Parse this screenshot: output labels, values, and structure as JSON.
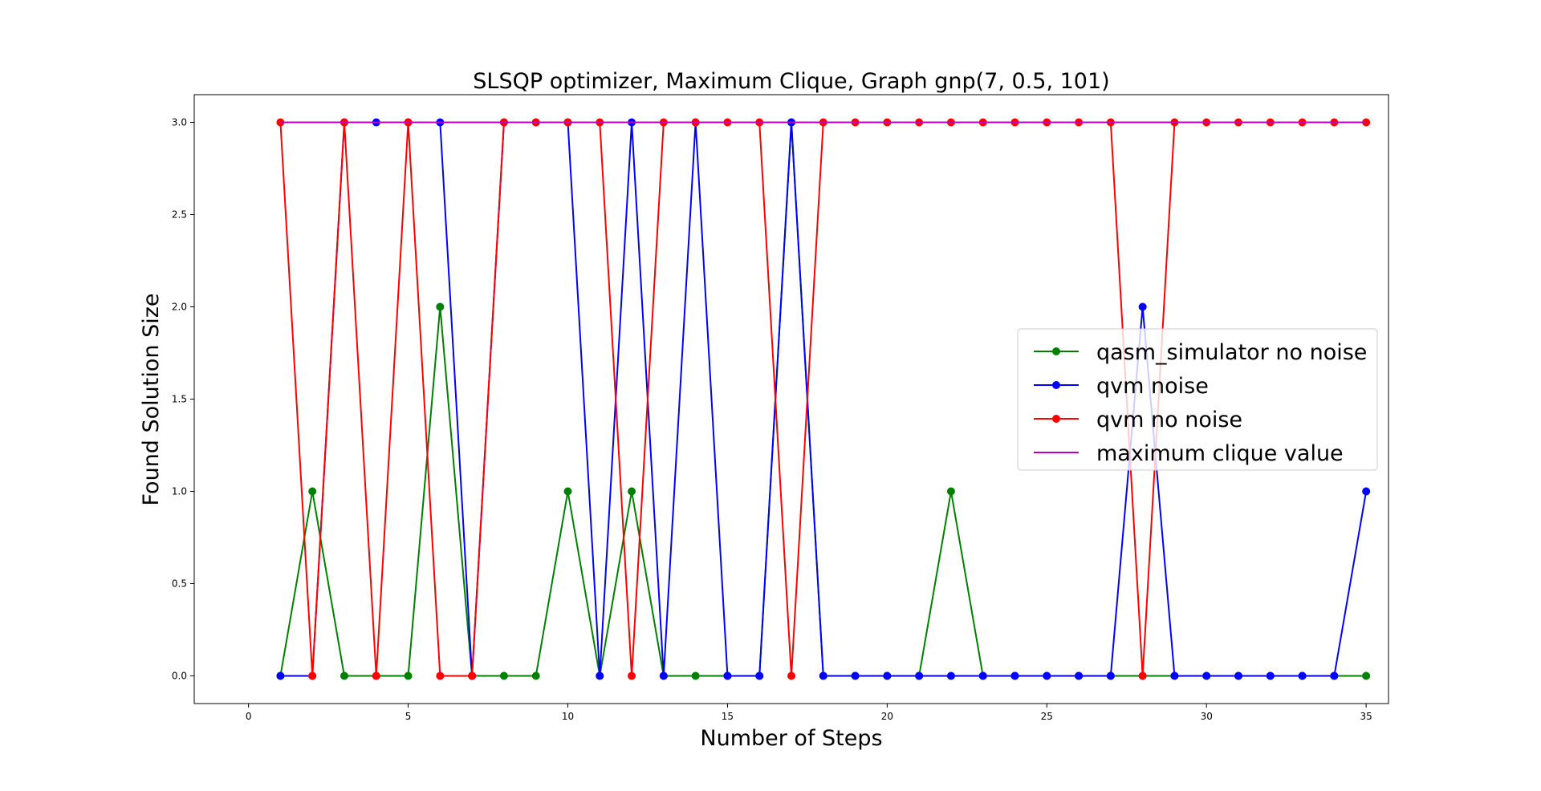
{
  "chart_data": {
    "type": "line",
    "title": "SLSQP optimizer, Maximum Clique, Graph gnp(7, 0.5, 101)",
    "xlabel": "Number of Steps",
    "ylabel": "Found Solution Size",
    "xlim": [
      -1.7,
      35.7
    ],
    "ylim": [
      -0.15,
      3.15
    ],
    "xticks": [
      0,
      5,
      10,
      15,
      20,
      25,
      30,
      35
    ],
    "xtick_labels": [
      "0",
      "5",
      "10",
      "15",
      "20",
      "25",
      "30",
      "35"
    ],
    "yticks": [
      0.0,
      0.5,
      1.0,
      1.5,
      2.0,
      2.5,
      3.0
    ],
    "ytick_labels": [
      "0.0",
      "0.5",
      "1.0",
      "1.5",
      "2.0",
      "2.5",
      "3.0"
    ],
    "grid": false,
    "legend_position": "center-right",
    "x": [
      1,
      2,
      3,
      4,
      5,
      6,
      7,
      8,
      9,
      10,
      11,
      12,
      13,
      14,
      15,
      16,
      17,
      18,
      19,
      20,
      21,
      22,
      23,
      24,
      25,
      26,
      27,
      28,
      29,
      30,
      31,
      32,
      33,
      34,
      35
    ],
    "series": [
      {
        "name": "qasm_simulator no noise",
        "color": "#008000",
        "marker": true,
        "values": [
          0,
          1,
          0,
          0,
          0,
          2,
          0,
          0,
          0,
          1,
          0,
          1,
          0,
          0,
          0,
          0,
          3,
          0,
          0,
          0,
          0,
          1,
          0,
          0,
          0,
          0,
          0,
          0,
          0,
          0,
          0,
          0,
          0,
          0,
          0
        ]
      },
      {
        "name": "qvm noise",
        "color": "#0000ff",
        "marker": true,
        "values": [
          0,
          0,
          3,
          3,
          3,
          3,
          0,
          3,
          3,
          3,
          0,
          3,
          0,
          3,
          0,
          0,
          3,
          0,
          0,
          0,
          0,
          0,
          0,
          0,
          0,
          0,
          0,
          2,
          0,
          0,
          0,
          0,
          0,
          0,
          1
        ]
      },
      {
        "name": "qvm no noise",
        "color": "#ff0000",
        "marker": true,
        "values": [
          3,
          0,
          3,
          0,
          3,
          0,
          0,
          3,
          3,
          3,
          3,
          0,
          3,
          3,
          3,
          3,
          0,
          3,
          3,
          3,
          3,
          3,
          3,
          3,
          3,
          3,
          3,
          0,
          3,
          3,
          3,
          3,
          3,
          3,
          3
        ]
      },
      {
        "name": "maximum clique value",
        "color": "#bf00bf",
        "marker": false,
        "values": [
          3,
          3,
          3,
          3,
          3,
          3,
          3,
          3,
          3,
          3,
          3,
          3,
          3,
          3,
          3,
          3,
          3,
          3,
          3,
          3,
          3,
          3,
          3,
          3,
          3,
          3,
          3,
          3,
          3,
          3,
          3,
          3,
          3,
          3,
          3
        ]
      }
    ]
  }
}
